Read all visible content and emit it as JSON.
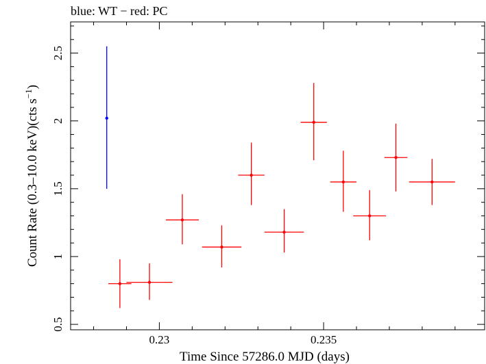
{
  "chart_data": {
    "type": "scatter",
    "title": "blue: WT − red: PC",
    "xlabel": "Time Since 57286.0 MJD (days)",
    "ylabel_main": "Count Rate (0.3–10.0 keV)(cts s",
    "ylabel_sup": "−1",
    "ylabel_end": ")",
    "xlim": [
      0.2273,
      0.2399
    ],
    "ylim": [
      0.46,
      2.73
    ],
    "x_ticks": [
      0.23,
      0.235
    ],
    "x_tick_labels": [
      "0.23",
      "0.235"
    ],
    "y_ticks": [
      0.5,
      1,
      1.5,
      2,
      2.5
    ],
    "y_tick_labels": [
      "0.5",
      "1",
      "1.5",
      "2",
      "2.5"
    ],
    "grid": false,
    "series": [
      {
        "color": "#0000ff",
        "points": [
          {
            "x": 0.2284,
            "xerr": 0.0,
            "y": 2.02,
            "ylo": 1.5,
            "yhi": 2.55
          }
        ]
      },
      {
        "color": "#ff0000",
        "points": [
          {
            "x": 0.2288,
            "xerr": 0.00035,
            "y": 0.8,
            "ylo": 0.62,
            "yhi": 0.98
          },
          {
            "x": 0.2297,
            "xerr": 0.0007,
            "y": 0.81,
            "ylo": 0.68,
            "yhi": 0.95
          },
          {
            "x": 0.2307,
            "xerr": 0.0005,
            "y": 1.27,
            "ylo": 1.09,
            "yhi": 1.46
          },
          {
            "x": 0.2319,
            "xerr": 0.0006,
            "y": 1.07,
            "ylo": 0.92,
            "yhi": 1.23
          },
          {
            "x": 0.2328,
            "xerr": 0.0004,
            "y": 1.6,
            "ylo": 1.38,
            "yhi": 1.84
          },
          {
            "x": 0.2338,
            "xerr": 0.0006,
            "y": 1.18,
            "ylo": 1.03,
            "yhi": 1.35
          },
          {
            "x": 0.2347,
            "xerr": 0.0004,
            "y": 1.99,
            "ylo": 1.71,
            "yhi": 2.28
          },
          {
            "x": 0.2356,
            "xerr": 0.0004,
            "y": 1.55,
            "ylo": 1.33,
            "yhi": 1.78
          },
          {
            "x": 0.2364,
            "xerr": 0.0005,
            "y": 1.3,
            "ylo": 1.12,
            "yhi": 1.49
          },
          {
            "x": 0.2372,
            "xerr": 0.00035,
            "y": 1.73,
            "ylo": 1.48,
            "yhi": 1.98
          },
          {
            "x": 0.2383,
            "xerr": 0.0007,
            "y": 1.55,
            "ylo": 1.38,
            "yhi": 1.72
          }
        ]
      }
    ]
  }
}
